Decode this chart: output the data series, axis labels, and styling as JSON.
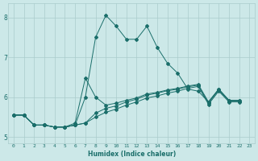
{
  "xlabel": "Humidex (Indice chaleur)",
  "background_color": "#cce8e8",
  "grid_color": "#aacccc",
  "line_color": "#1a6e6a",
  "xlim": [
    -0.5,
    23.5
  ],
  "ylim": [
    4.85,
    8.35
  ],
  "xtick_labels": [
    "0",
    "1",
    "2",
    "3",
    "4",
    "5",
    "6",
    "7",
    "8",
    "9",
    "10",
    "11",
    "12",
    "13",
    "14",
    "15",
    "16",
    "17",
    "18",
    "19",
    "20",
    "21",
    "22",
    "23"
  ],
  "ytick_values": [
    5,
    6,
    7,
    8
  ],
  "series": [
    [
      5.55,
      5.55,
      5.3,
      5.3,
      5.25,
      5.25,
      5.3,
      6.0,
      7.5,
      8.05,
      7.78,
      7.45,
      7.45,
      7.78,
      7.25,
      6.85,
      6.6,
      6.2,
      6.15,
      5.88,
      6.2,
      5.92,
      5.92
    ],
    [
      5.55,
      5.55,
      5.3,
      5.3,
      5.25,
      5.25,
      5.35,
      6.48,
      6.0,
      5.8,
      5.85,
      5.92,
      5.98,
      6.08,
      6.12,
      6.18,
      6.22,
      6.28,
      6.32,
      5.88,
      6.2,
      5.92,
      5.92
    ],
    [
      5.55,
      5.55,
      5.3,
      5.3,
      5.25,
      5.25,
      5.3,
      5.35,
      5.6,
      5.72,
      5.78,
      5.88,
      5.95,
      6.05,
      6.1,
      6.16,
      6.2,
      6.26,
      6.3,
      5.85,
      6.18,
      5.9,
      5.9
    ],
    [
      5.55,
      5.55,
      5.3,
      5.3,
      5.25,
      5.25,
      5.3,
      5.35,
      5.5,
      5.62,
      5.7,
      5.8,
      5.88,
      5.98,
      6.03,
      6.1,
      6.15,
      6.22,
      6.27,
      5.82,
      6.15,
      5.88,
      5.88
    ]
  ]
}
